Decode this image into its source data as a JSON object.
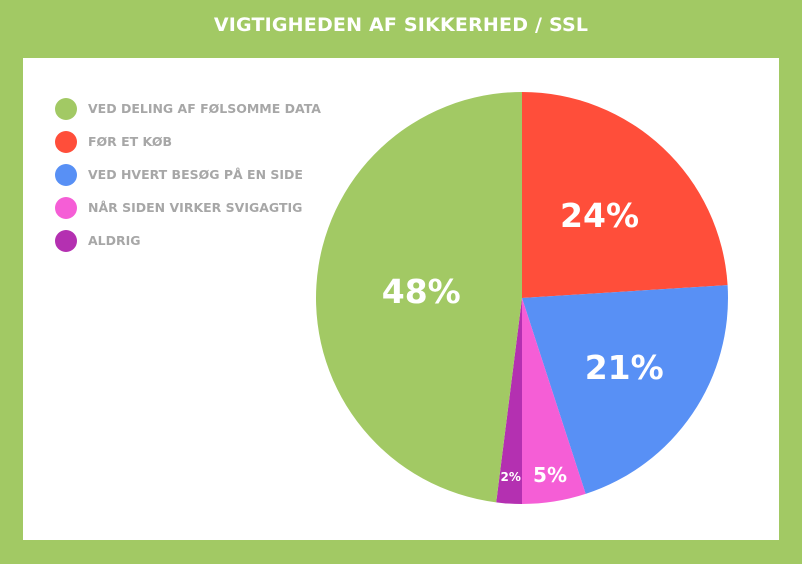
{
  "chart_data": {
    "type": "pie",
    "title": "VIGTIGHEDEN AF SIKKERHED / SSL",
    "legend_position": "top-left",
    "slices": [
      {
        "label": "VED DELING AF FØLSOMME DATA",
        "value": 48,
        "value_label": "48%",
        "color": "#a2c964"
      },
      {
        "label": "FØR ET KØB",
        "value": 24,
        "value_label": "24%",
        "color": "#ff4e3a"
      },
      {
        "label": "VED HVERT BESØG PÅ EN SIDE",
        "value": 21,
        "value_label": "21%",
        "color": "#5890f5"
      },
      {
        "label": "NÅR SIDEN VIRKER SVIGAGTIG",
        "value": 5,
        "value_label": "5%",
        "color": "#f55ed6"
      },
      {
        "label": "ALDRIG",
        "value": 2,
        "value_label": "2%",
        "color": "#b430b1"
      }
    ]
  }
}
